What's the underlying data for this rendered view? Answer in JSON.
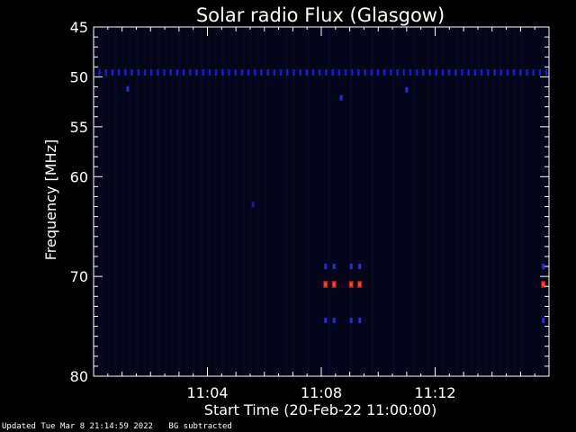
{
  "chart_data": {
    "type": "heatmap",
    "title": "Solar radio Flux (Glasgow)",
    "xlabel": "Start Time (20-Feb-22 11:00:00)",
    "ylabel": "Frequency [MHz]",
    "x_unit": "minutes after 11:00",
    "xlim": [
      0,
      16
    ],
    "ylim": [
      45,
      80
    ],
    "x_ticks": [
      {
        "t": 4,
        "label": "11:04"
      },
      {
        "t": 8,
        "label": "11:08"
      },
      {
        "t": 12,
        "label": "11:12"
      }
    ],
    "y_ticks": [
      45,
      50,
      55,
      60,
      70,
      80
    ],
    "y_minor_ticks": [
      46,
      47,
      48,
      49,
      51,
      52,
      53,
      54,
      56,
      57,
      58,
      59,
      61,
      62,
      63,
      64,
      65,
      66,
      67,
      68,
      69,
      71,
      72,
      73,
      74,
      75,
      76,
      77,
      78,
      79
    ],
    "background_color": "#05051a",
    "features": [
      {
        "kind": "band",
        "freq": 49.6,
        "t_start": 0.2,
        "t_end": 15.9,
        "intensity": "low",
        "color": "#1a1ac8"
      },
      {
        "kind": "spot",
        "t": 1.2,
        "freq": 51.2,
        "intensity": "low",
        "color": "#2a2ae0"
      },
      {
        "kind": "spot",
        "t": 8.7,
        "freq": 52.1,
        "intensity": "low",
        "color": "#2a2ae0"
      },
      {
        "kind": "spot",
        "t": 11.0,
        "freq": 51.3,
        "intensity": "low",
        "color": "#2a2ae0"
      },
      {
        "kind": "spot",
        "t": 5.6,
        "freq": 62.8,
        "intensity": "low",
        "color": "#1a1aa0"
      },
      {
        "kind": "spot",
        "t": 8.15,
        "freq": 69.0,
        "intensity": "low",
        "color": "#2a2ae0"
      },
      {
        "kind": "spot",
        "t": 8.45,
        "freq": 69.0,
        "intensity": "low",
        "color": "#2a2ae0"
      },
      {
        "kind": "spot",
        "t": 9.05,
        "freq": 69.0,
        "intensity": "low",
        "color": "#2a2ae0"
      },
      {
        "kind": "spot",
        "t": 9.35,
        "freq": 69.0,
        "intensity": "low",
        "color": "#2a2ae0"
      },
      {
        "kind": "spot",
        "t": 15.8,
        "freq": 69.0,
        "intensity": "low",
        "color": "#2a2ae0"
      },
      {
        "kind": "spot",
        "t": 8.15,
        "freq": 70.8,
        "intensity": "high",
        "color": "#ff4a2a"
      },
      {
        "kind": "spot",
        "t": 8.45,
        "freq": 70.8,
        "intensity": "high",
        "color": "#ff4a2a"
      },
      {
        "kind": "spot",
        "t": 9.05,
        "freq": 70.8,
        "intensity": "high",
        "color": "#ff4a2a"
      },
      {
        "kind": "spot",
        "t": 9.35,
        "freq": 70.8,
        "intensity": "high",
        "color": "#ff4a2a"
      },
      {
        "kind": "spot",
        "t": 15.8,
        "freq": 70.8,
        "intensity": "high",
        "color": "#ff4a2a"
      },
      {
        "kind": "spot",
        "t": 8.15,
        "freq": 74.4,
        "intensity": "low",
        "color": "#2a2ae0"
      },
      {
        "kind": "spot",
        "t": 8.45,
        "freq": 74.4,
        "intensity": "low",
        "color": "#2a2ae0"
      },
      {
        "kind": "spot",
        "t": 9.05,
        "freq": 74.4,
        "intensity": "low",
        "color": "#2a2ae0"
      },
      {
        "kind": "spot",
        "t": 9.35,
        "freq": 74.4,
        "intensity": "low",
        "color": "#2a2ae0"
      },
      {
        "kind": "spot",
        "t": 15.8,
        "freq": 74.4,
        "intensity": "low",
        "color": "#2a2ae0"
      }
    ]
  },
  "footer": {
    "updated": "Updated Tue Mar  8 21:14:59 2022",
    "note": "BG subtracted"
  }
}
